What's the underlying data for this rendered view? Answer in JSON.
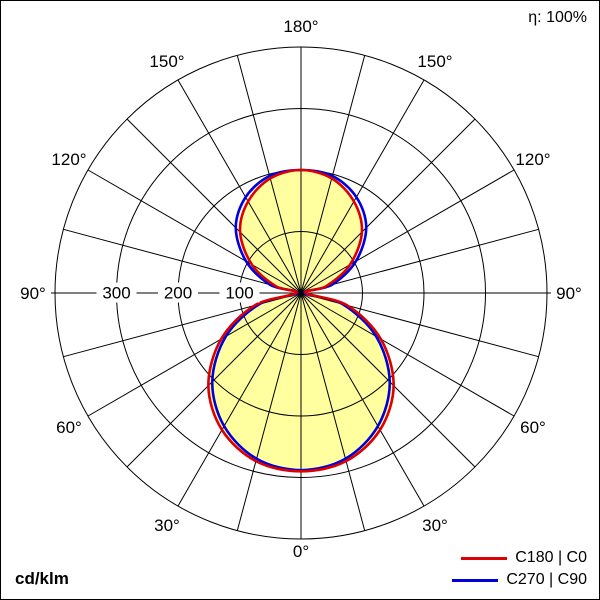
{
  "header": {
    "efficiency": "η: 100%"
  },
  "footer": {
    "unit": "cd/klm"
  },
  "legend": [
    {
      "label": "C180 | C0",
      "color": "#dd0000"
    },
    {
      "label": "C270 | C90",
      "color": "#0000dd"
    }
  ],
  "chart_data": {
    "type": "polar",
    "title": "Luminous intensity distribution",
    "unit": "cd/klm",
    "grid": "on",
    "radial_ticks": [
      100,
      200,
      300
    ],
    "radial_max": 400,
    "angle_tick_step_deg": 15,
    "angle_labels_deg": [
      0,
      30,
      60,
      90,
      120,
      150,
      180
    ],
    "gamma_deg": [
      0,
      15,
      30,
      45,
      60,
      75,
      90,
      105,
      120,
      135,
      150,
      165,
      180
    ],
    "series": [
      {
        "name": "C180 | C0",
        "color": "#dd0000",
        "values": [
          290,
          283,
          257,
          213,
          150,
          78,
          8,
          42,
          92,
          140,
          172,
          193,
          200
        ]
      },
      {
        "name": "C270 | C90",
        "color": "#0000dd",
        "values": [
          288,
          279,
          250,
          204,
          141,
          70,
          6,
          52,
          103,
          150,
          180,
          197,
          200
        ]
      }
    ],
    "fill_color": "#ffffa0"
  }
}
